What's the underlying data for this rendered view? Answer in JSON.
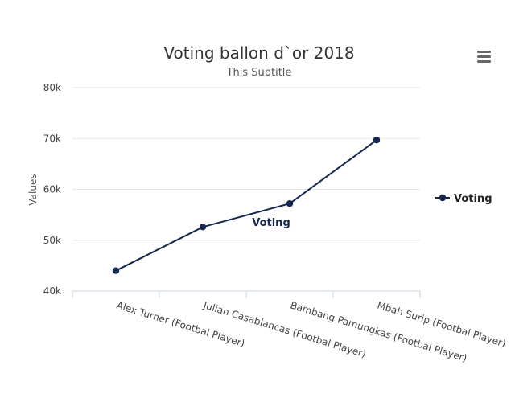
{
  "chart_data": {
    "type": "line",
    "title": "Voting ballon d`or 2018",
    "subtitle": "This Subtitle",
    "xlabel": "",
    "ylabel": "Values",
    "categories": [
      "Alex Turner (Footbal Player)",
      "Julian Casablancas (Footbal Player)",
      "Bambang Pamungkas (Footbal Player)",
      "Mbah Surip (Footbal Player)"
    ],
    "series": [
      {
        "name": "Voting",
        "values": [
          44000,
          52600,
          57200,
          69700
        ]
      }
    ],
    "ylim": [
      40000,
      80000
    ],
    "yticks": [
      40000,
      50000,
      60000,
      70000,
      80000
    ],
    "ytick_labels": [
      "40k",
      "50k",
      "60k",
      "70k",
      "80k"
    ],
    "grid": true,
    "legend": "right",
    "series_label": "Voting",
    "series_color": "#162850"
  },
  "menu": {
    "icon": "hamburger-menu-icon"
  }
}
